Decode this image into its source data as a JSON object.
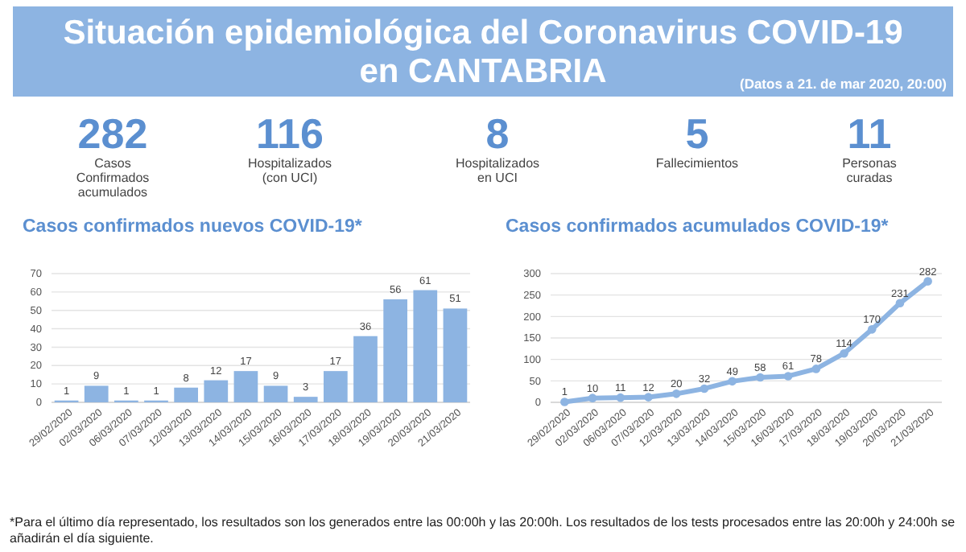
{
  "chart_data": [
    {
      "type": "other",
      "title": "Situación epidemiológica del Coronavirus COVID-19 en CANTABRIA",
      "subtitle": "(Datos a 21. de mar 2020, 20:00)",
      "categories": [
        "Casos Confirmados acumulados",
        "Hospitalizados (con UCI)",
        "Hospitalizados en UCI",
        "Fallecimientos",
        "Personas curadas"
      ],
      "values": [
        282,
        116,
        8,
        5,
        11
      ],
      "color": "#5b8fd0",
      "data_labels": true,
      "annotations": [
        "*Para el último día representado, los resultados son los generados entre las 00:00h y las 20:00h. Los resultados de los tests procesados entre las 20:00h y 24:00h se añadirán el día siguiente."
      ]
    },
    {
      "type": "bar",
      "title": "Casos confirmados nuevos COVID-19*",
      "categories": [
        "29/02/2020",
        "02/03/2020",
        "06/03/2020",
        "07/03/2020",
        "12/03/2020",
        "13/03/2020",
        "14/03/2020",
        "15/03/2020",
        "16/03/2020",
        "17/03/2020",
        "18/03/2020",
        "19/03/2020",
        "20/03/2020",
        "21/03/2020"
      ],
      "values": [
        1,
        9,
        1,
        1,
        8,
        12,
        17,
        9,
        3,
        17,
        36,
        56,
        61,
        51
      ],
      "color": "#8db4e2",
      "ylim": [
        0,
        70
      ],
      "yticks": [
        0,
        10,
        20,
        30,
        40,
        50,
        60,
        70
      ],
      "grid": "y",
      "data_labels": true
    },
    {
      "type": "line",
      "title": "Casos confirmados acumulados COVID-19*",
      "categories": [
        "29/02/2020",
        "02/03/2020",
        "06/03/2020",
        "07/03/2020",
        "12/03/2020",
        "13/03/2020",
        "14/03/2020",
        "15/03/2020",
        "16/03/2020",
        "17/03/2020",
        "18/03/2020",
        "19/03/2020",
        "20/03/2020",
        "21/03/2020"
      ],
      "values": [
        1,
        10,
        11,
        12,
        20,
        32,
        49,
        58,
        61,
        78,
        114,
        170,
        231,
        282
      ],
      "color": "#8db4e2",
      "ylim": [
        0,
        300
      ],
      "yticks": [
        0,
        50,
        100,
        150,
        200,
        250,
        300
      ],
      "grid": "y",
      "data_labels": true,
      "marker": "circle",
      "line_style": "solid"
    }
  ]
}
